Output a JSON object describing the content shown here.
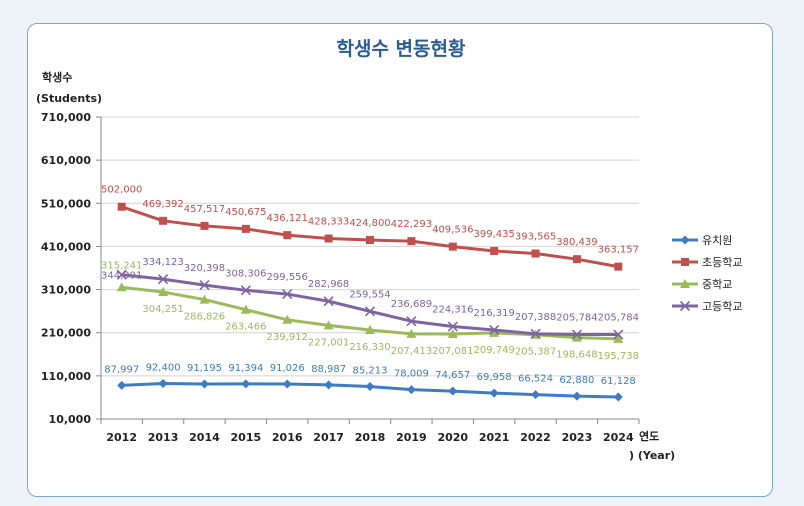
{
  "chart_data": {
    "type": "line",
    "title": "학생수 변동현황",
    "ylabel": "학생수",
    "ylabel_sub": "(Students)",
    "xlabel": "연도",
    "xlabel_sub": ") (Year)",
    "ylim": [
      10000,
      710000
    ],
    "yticks": [
      "710,000",
      "610,000",
      "510,000",
      "410,000",
      "310,000",
      "210,000",
      "110,000",
      "10,000"
    ],
    "ytick_values": [
      710000,
      610000,
      510000,
      410000,
      310000,
      210000,
      110000,
      10000
    ],
    "categories": [
      "2012",
      "2013",
      "2014",
      "2015",
      "2016",
      "2017",
      "2018",
      "2019",
      "2020",
      "2021",
      "2022",
      "2023",
      "2024"
    ],
    "legend_position": "right",
    "series": [
      {
        "name": "유치원",
        "color": "#3f7cc0",
        "marker": "diamond",
        "values": [
          87997,
          92400,
          91195,
          91394,
          91026,
          88987,
          85213,
          78009,
          74657,
          69958,
          66524,
          62880,
          61128
        ],
        "labels": [
          "87,997",
          "92,400",
          "91,195",
          "91,394",
          "91,026",
          "88,987",
          "85,213",
          "78,009",
          "74,657",
          "69,958",
          "66,524",
          "62,880",
          "61,128"
        ]
      },
      {
        "name": "초등학교",
        "color": "#c0504d",
        "marker": "square",
        "values": [
          502000,
          469392,
          457517,
          450675,
          436121,
          428333,
          424800,
          422293,
          409536,
          399435,
          393565,
          380439,
          363157
        ],
        "labels": [
          "502,000",
          "469,392",
          "457,517",
          "450,675",
          "436,121",
          "428,333",
          "424,800",
          "422,293",
          "409,536",
          "399,435",
          "393,565",
          "380,439",
          "363,157"
        ]
      },
      {
        "name": "중학교",
        "color": "#9bbb59",
        "marker": "triangle",
        "values": [
          315241,
          304251,
          286826,
          263466,
          239912,
          227001,
          216330,
          207413,
          207081,
          209749,
          205387,
          198648,
          195738
        ],
        "labels": [
          "315,241",
          "304,251",
          "286,826",
          "263,466",
          "239,912",
          "227,001",
          "216,330",
          "207,413",
          "207,081",
          "209,749",
          "205,387",
          "198,648",
          "195,738"
        ]
      },
      {
        "name": "고등학교",
        "color": "#8064a2",
        "marker": "x",
        "values": [
          344391,
          334123,
          320398,
          308306,
          299556,
          282968,
          259554,
          236689,
          224316,
          216319,
          207388,
          205784,
          205784
        ],
        "labels": [
          "344,391",
          "334,123",
          "320,398",
          "308,306",
          "299,556",
          "282,968",
          "259,554",
          "236,689",
          "224,316",
          "216,319",
          "207,388",
          "205,784",
          "205,784"
        ]
      }
    ]
  }
}
